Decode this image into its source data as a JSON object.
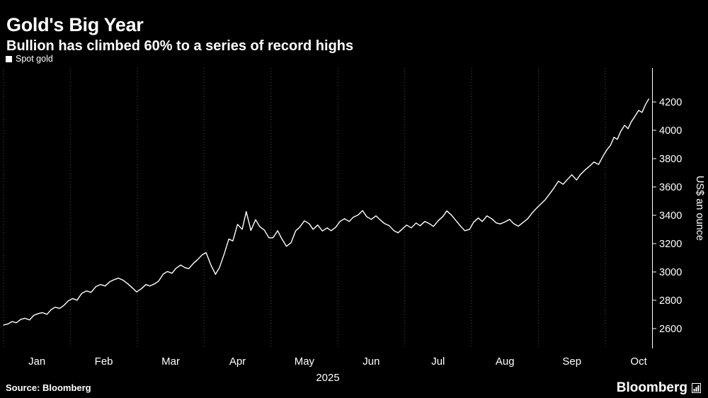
{
  "header": {
    "title": "Gold's Big Year",
    "subtitle": "Bullion has climbed 60% to a series of record highs"
  },
  "legend": {
    "label": "Spot gold",
    "marker_color": "#ffffff"
  },
  "footer": {
    "source": "Source: Bloomberg",
    "brand": "Bloomberg"
  },
  "colors": {
    "background": "#000000",
    "text": "#ffffff",
    "grid": "#4d4d4d",
    "axis": "#ffffff"
  },
  "chart_data": {
    "type": "line",
    "title": "Gold's Big Year",
    "subtitle": "Bullion has climbed 60% to a series of record highs",
    "ylabel": "US$ an ounce",
    "x_axis_year": "2025",
    "x_unit": "months_from_jan_2025",
    "x_domain": [
      0,
      9.7
    ],
    "y_domain": [
      2460,
      4440
    ],
    "y_ticks": [
      2600,
      2800,
      3000,
      3200,
      3400,
      3600,
      3800,
      4000,
      4200
    ],
    "x_ticks": [
      "Jan",
      "Feb",
      "Mar",
      "Apr",
      "May",
      "Jun",
      "Jul",
      "Aug",
      "Sep",
      "Oct"
    ],
    "grid": "vertical-dotted",
    "grid_color": "#4d4d4d",
    "legend_position": "top-left",
    "series": [
      {
        "name": "Spot gold",
        "color": "#ffffff",
        "points": [
          [
            0.0,
            2625
          ],
          [
            0.06,
            2632
          ],
          [
            0.13,
            2650
          ],
          [
            0.19,
            2641
          ],
          [
            0.26,
            2666
          ],
          [
            0.32,
            2673
          ],
          [
            0.39,
            2661
          ],
          [
            0.45,
            2693
          ],
          [
            0.52,
            2706
          ],
          [
            0.58,
            2713
          ],
          [
            0.65,
            2701
          ],
          [
            0.71,
            2733
          ],
          [
            0.77,
            2751
          ],
          [
            0.84,
            2743
          ],
          [
            0.9,
            2763
          ],
          [
            0.97,
            2796
          ],
          [
            1.03,
            2812
          ],
          [
            1.1,
            2801
          ],
          [
            1.17,
            2849
          ],
          [
            1.24,
            2866
          ],
          [
            1.31,
            2856
          ],
          [
            1.38,
            2896
          ],
          [
            1.45,
            2911
          ],
          [
            1.52,
            2901
          ],
          [
            1.59,
            2931
          ],
          [
            1.66,
            2947
          ],
          [
            1.72,
            2956
          ],
          [
            1.79,
            2941
          ],
          [
            1.86,
            2916
          ],
          [
            1.93,
            2886
          ],
          [
            1.99,
            2859
          ],
          [
            2.06,
            2881
          ],
          [
            2.13,
            2911
          ],
          [
            2.19,
            2901
          ],
          [
            2.26,
            2916
          ],
          [
            2.32,
            2936
          ],
          [
            2.39,
            2986
          ],
          [
            2.45,
            3003
          ],
          [
            2.52,
            2991
          ],
          [
            2.58,
            3026
          ],
          [
            2.65,
            3049
          ],
          [
            2.71,
            3031
          ],
          [
            2.77,
            3023
          ],
          [
            2.84,
            3061
          ],
          [
            2.9,
            3086
          ],
          [
            2.97,
            3121
          ],
          [
            3.03,
            3136
          ],
          [
            3.1,
            3051
          ],
          [
            3.17,
            2983
          ],
          [
            3.23,
            3031
          ],
          [
            3.3,
            3126
          ],
          [
            3.37,
            3232
          ],
          [
            3.43,
            3219
          ],
          [
            3.5,
            3336
          ],
          [
            3.57,
            3301
          ],
          [
            3.63,
            3426
          ],
          [
            3.7,
            3293
          ],
          [
            3.77,
            3369
          ],
          [
            3.83,
            3321
          ],
          [
            3.9,
            3296
          ],
          [
            3.97,
            3241
          ],
          [
            4.03,
            3241
          ],
          [
            4.1,
            3291
          ],
          [
            4.16,
            3236
          ],
          [
            4.23,
            3181
          ],
          [
            4.3,
            3206
          ],
          [
            4.37,
            3291
          ],
          [
            4.43,
            3316
          ],
          [
            4.5,
            3361
          ],
          [
            4.57,
            3341
          ],
          [
            4.63,
            3301
          ],
          [
            4.7,
            3331
          ],
          [
            4.77,
            3289
          ],
          [
            4.84,
            3311
          ],
          [
            4.9,
            3291
          ],
          [
            4.97,
            3316
          ],
          [
            5.03,
            3356
          ],
          [
            5.1,
            3376
          ],
          [
            5.17,
            3356
          ],
          [
            5.23,
            3386
          ],
          [
            5.3,
            3401
          ],
          [
            5.37,
            3433
          ],
          [
            5.43,
            3391
          ],
          [
            5.5,
            3371
          ],
          [
            5.57,
            3396
          ],
          [
            5.63,
            3369
          ],
          [
            5.7,
            3341
          ],
          [
            5.77,
            3326
          ],
          [
            5.84,
            3291
          ],
          [
            5.9,
            3276
          ],
          [
            5.97,
            3306
          ],
          [
            6.03,
            3331
          ],
          [
            6.1,
            3311
          ],
          [
            6.17,
            3346
          ],
          [
            6.23,
            3326
          ],
          [
            6.3,
            3356
          ],
          [
            6.37,
            3341
          ],
          [
            6.43,
            3321
          ],
          [
            6.5,
            3361
          ],
          [
            6.57,
            3391
          ],
          [
            6.63,
            3431
          ],
          [
            6.7,
            3401
          ],
          [
            6.77,
            3361
          ],
          [
            6.84,
            3321
          ],
          [
            6.9,
            3291
          ],
          [
            6.97,
            3301
          ],
          [
            7.03,
            3351
          ],
          [
            7.1,
            3381
          ],
          [
            7.16,
            3356
          ],
          [
            7.23,
            3396
          ],
          [
            7.3,
            3376
          ],
          [
            7.37,
            3346
          ],
          [
            7.43,
            3339
          ],
          [
            7.5,
            3353
          ],
          [
            7.57,
            3371
          ],
          [
            7.63,
            3341
          ],
          [
            7.7,
            3323
          ],
          [
            7.77,
            3349
          ],
          [
            7.84,
            3376
          ],
          [
            7.9,
            3413
          ],
          [
            7.97,
            3449
          ],
          [
            8.03,
            3477
          ],
          [
            8.1,
            3509
          ],
          [
            8.16,
            3546
          ],
          [
            8.23,
            3591
          ],
          [
            8.3,
            3641
          ],
          [
            8.37,
            3619
          ],
          [
            8.43,
            3651
          ],
          [
            8.5,
            3686
          ],
          [
            8.57,
            3649
          ],
          [
            8.63,
            3689
          ],
          [
            8.7,
            3721
          ],
          [
            8.77,
            3749
          ],
          [
            8.83,
            3776
          ],
          [
            8.9,
            3759
          ],
          [
            8.97,
            3821
          ],
          [
            9.03,
            3866
          ],
          [
            9.08,
            3896
          ],
          [
            9.13,
            3951
          ],
          [
            9.18,
            3936
          ],
          [
            9.23,
            3991
          ],
          [
            9.29,
            4036
          ],
          [
            9.34,
            4011
          ],
          [
            9.39,
            4061
          ],
          [
            9.44,
            4096
          ],
          [
            9.5,
            4141
          ],
          [
            9.55,
            4126
          ],
          [
            9.6,
            4181
          ],
          [
            9.65,
            4221
          ]
        ]
      }
    ]
  }
}
